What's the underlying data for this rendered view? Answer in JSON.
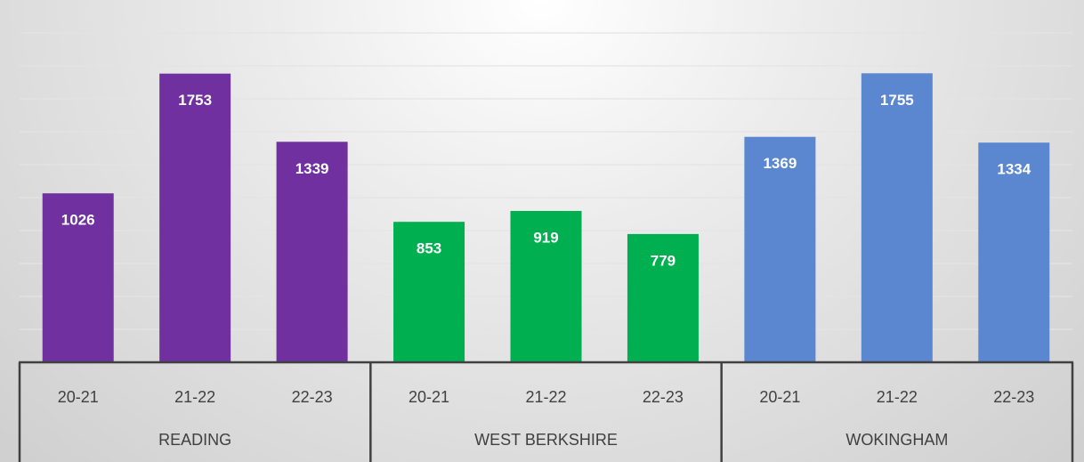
{
  "chart_data": {
    "type": "bar",
    "ylim": [
      0,
      2000
    ],
    "yticks": [
      0,
      200,
      400,
      600,
      800,
      1000,
      1200,
      1400,
      1600,
      1800,
      2000
    ],
    "grid": true,
    "series": [
      {
        "name": "READING",
        "color": "#7030a0",
        "categories": [
          "20-21",
          "21-22",
          "22-23"
        ],
        "values": [
          1026,
          1753,
          1339
        ]
      },
      {
        "name": "WEST BERKSHIRE",
        "color": "#00b050",
        "categories": [
          "20-21",
          "21-22",
          "22-23"
        ],
        "values": [
          853,
          919,
          779
        ]
      },
      {
        "name": "WOKINGHAM",
        "color": "#5b86d0",
        "categories": [
          "20-21",
          "21-22",
          "22-23"
        ],
        "values": [
          1369,
          1755,
          1334
        ]
      }
    ]
  }
}
